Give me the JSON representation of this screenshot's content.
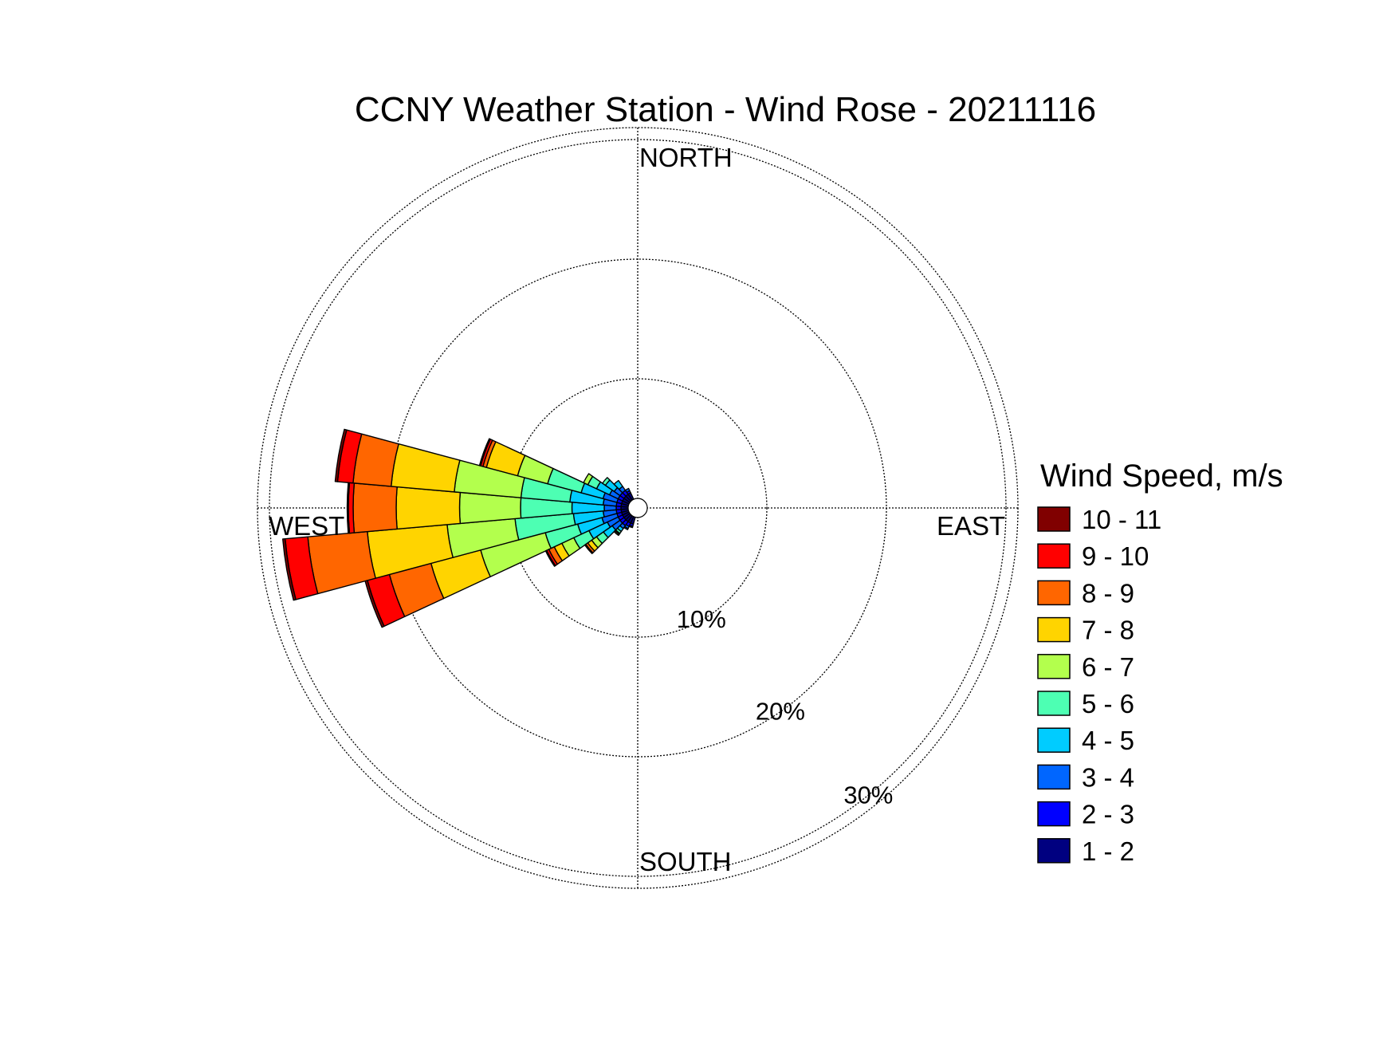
{
  "chart_data": {
    "type": "wind-rose",
    "title": "CCNY Weather Station - Wind Rose - 20211116",
    "directions": {
      "north": "NORTH",
      "south": "SOUTH",
      "east": "EAST",
      "west": "WEST"
    },
    "radial_axis": {
      "max": 31,
      "ticks": [
        {
          "value": 10,
          "label": "10%"
        },
        {
          "value": 20,
          "label": "20%"
        },
        {
          "value": 30,
          "label": "30%"
        }
      ],
      "grid": true
    },
    "sector_width_deg": 10,
    "legend": {
      "title": "Wind Speed, m/s",
      "placement": "right"
    },
    "speed_bins": [
      {
        "label": "1 - 2",
        "color": "#000080"
      },
      {
        "label": "2 - 3",
        "color": "#0000FF"
      },
      {
        "label": "3 - 4",
        "color": "#0066FF"
      },
      {
        "label": "4 - 5",
        "color": "#00CCFF"
      },
      {
        "label": "5 - 6",
        "color": "#4DFFB3"
      },
      {
        "label": "6 - 7",
        "color": "#B3FF4D"
      },
      {
        "label": "7 - 8",
        "color": "#FFD400"
      },
      {
        "label": "8 - 9",
        "color": "#FF6600"
      },
      {
        "label": "9 - 10",
        "color": "#FF0000"
      },
      {
        "label": "10 - 11",
        "color": "#800000"
      }
    ],
    "sectors": [
      {
        "direction_deg": 250,
        "cumulative_pct": [
          0.6,
          1.0,
          2.3,
          4.4,
          7.2,
          12.8,
          17.1,
          20.7,
          22.6,
          22.8
        ]
      },
      {
        "direction_deg": 260,
        "cumulative_pct": [
          0.6,
          1.0,
          2.1,
          4.6,
          9.5,
          15.2,
          21.9,
          26.9,
          28.8,
          29.0
        ]
      },
      {
        "direction_deg": 270,
        "cumulative_pct": [
          0.6,
          1.0,
          2.0,
          4.7,
          9.0,
          14.1,
          19.4,
          23.0,
          23.4,
          23.5
        ]
      },
      {
        "direction_deg": 280,
        "cumulative_pct": [
          0.6,
          1.0,
          2.1,
          4.9,
          9.0,
          14.6,
          19.9,
          23.1,
          24.4,
          24.6
        ]
      },
      {
        "direction_deg": 290,
        "cumulative_pct": [
          0.6,
          1.0,
          2.2,
          4.1,
          7.0,
          9.6,
          12.3,
          12.6,
          12.8,
          12.9
        ]
      },
      {
        "direction_deg": 300,
        "cumulative_pct": [
          0.6,
          1.0,
          1.8,
          3.0,
          3.8,
          4.2,
          4.2,
          4.2,
          4.2,
          4.2
        ]
      },
      {
        "direction_deg": 310,
        "cumulative_pct": [
          0.6,
          1.0,
          1.6,
          2.5,
          2.8,
          2.8,
          2.8,
          2.8,
          2.8,
          2.8
        ]
      },
      {
        "direction_deg": 320,
        "cumulative_pct": [
          0.6,
          1.0,
          1.4,
          2.0,
          2.0,
          2.0,
          2.0,
          2.0,
          2.0,
          2.0
        ]
      },
      {
        "direction_deg": 240,
        "cumulative_pct": [
          0.6,
          1.0,
          2.0,
          3.7,
          5.1,
          6.2,
          6.9,
          7.4,
          7.6,
          7.7
        ]
      },
      {
        "direction_deg": 230,
        "cumulative_pct": [
          0.6,
          1.0,
          1.8,
          2.7,
          3.4,
          3.9,
          4.3,
          4.5,
          4.6,
          4.6
        ]
      },
      {
        "direction_deg": 220,
        "cumulative_pct": [
          0.6,
          1.0,
          1.3,
          1.6,
          1.8,
          1.9,
          2.0,
          2.0,
          2.0,
          2.0
        ]
      },
      {
        "direction_deg": 210,
        "cumulative_pct": [
          0.6,
          0.9,
          1.1,
          1.2,
          1.2,
          1.2,
          1.2,
          1.2,
          1.2,
          1.2
        ]
      },
      {
        "direction_deg": 200,
        "cumulative_pct": [
          0.6,
          0.8,
          0.9,
          0.9,
          0.9,
          0.9,
          0.9,
          0.9,
          0.9,
          0.9
        ]
      },
      {
        "direction_deg": 330,
        "cumulative_pct": [
          0.6,
          0.8,
          1.0,
          1.0,
          1.0,
          1.0,
          1.0,
          1.0,
          1.0,
          1.0
        ]
      }
    ]
  }
}
